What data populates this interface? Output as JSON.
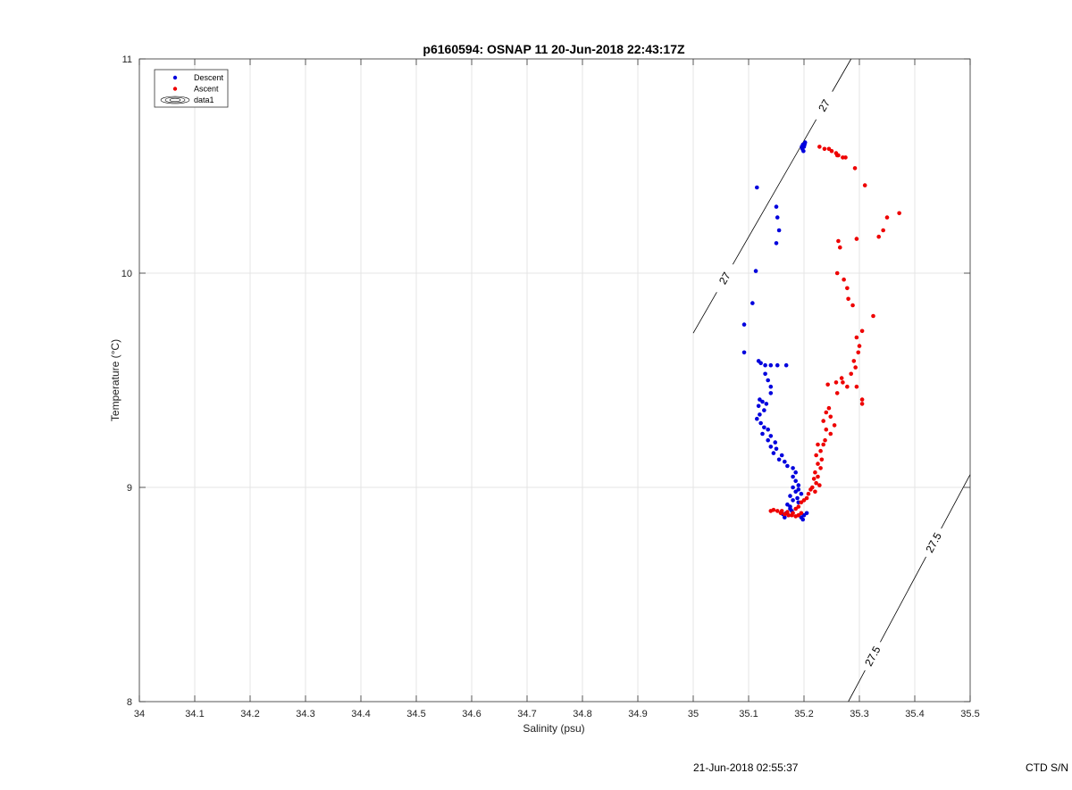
{
  "chart_data": {
    "type": "scatter",
    "title": "p6160594: OSNAP 11 20-Jun-2018 22:43:17Z",
    "xlabel": "Salinity (psu)",
    "ylabel": "Temperature (°C)",
    "xlim": [
      34,
      35.5
    ],
    "ylim": [
      8,
      11
    ],
    "xticks": [
      "34",
      "34.1",
      "34.2",
      "34.3",
      "34.4",
      "34.5",
      "34.6",
      "34.7",
      "34.8",
      "34.9",
      "35",
      "35.1",
      "35.2",
      "35.3",
      "35.4",
      "35.5"
    ],
    "yticks": [
      "8",
      "9",
      "10",
      "11"
    ],
    "grid": true,
    "legend_position": "top-left",
    "legend": [
      {
        "name": "Descent",
        "color": "#0000dd",
        "marker": "dot"
      },
      {
        "name": "Ascent",
        "color": "#ee0000",
        "marker": "dot"
      },
      {
        "name": "data1",
        "color": "#000000",
        "marker": "contour"
      }
    ],
    "series": [
      {
        "name": "Descent",
        "color": "#0000dd",
        "points": [
          [
            35.198,
            10.6
          ],
          [
            35.2,
            10.59
          ],
          [
            35.197,
            10.58
          ],
          [
            35.202,
            10.61
          ],
          [
            35.199,
            10.57
          ],
          [
            35.196,
            10.59
          ],
          [
            35.201,
            10.6
          ],
          [
            35.115,
            10.4
          ],
          [
            35.15,
            10.31
          ],
          [
            35.152,
            10.26
          ],
          [
            35.155,
            10.2
          ],
          [
            35.15,
            10.14
          ],
          [
            35.113,
            10.01
          ],
          [
            35.107,
            9.86
          ],
          [
            35.092,
            9.76
          ],
          [
            35.092,
            9.63
          ],
          [
            35.118,
            9.59
          ],
          [
            35.122,
            9.58
          ],
          [
            35.13,
            9.57
          ],
          [
            35.14,
            9.57
          ],
          [
            35.152,
            9.57
          ],
          [
            35.168,
            9.57
          ],
          [
            35.13,
            9.53
          ],
          [
            35.135,
            9.5
          ],
          [
            35.14,
            9.47
          ],
          [
            35.14,
            9.44
          ],
          [
            35.12,
            9.41
          ],
          [
            35.125,
            9.4
          ],
          [
            35.132,
            9.39
          ],
          [
            35.118,
            9.38
          ],
          [
            35.128,
            9.36
          ],
          [
            35.12,
            9.34
          ],
          [
            35.115,
            9.32
          ],
          [
            35.122,
            9.3
          ],
          [
            35.128,
            9.28
          ],
          [
            35.135,
            9.27
          ],
          [
            35.125,
            9.25
          ],
          [
            35.14,
            9.24
          ],
          [
            35.135,
            9.22
          ],
          [
            35.148,
            9.21
          ],
          [
            35.14,
            9.19
          ],
          [
            35.15,
            9.18
          ],
          [
            35.145,
            9.16
          ],
          [
            35.16,
            9.15
          ],
          [
            35.155,
            9.13
          ],
          [
            35.165,
            9.12
          ],
          [
            35.17,
            9.1
          ],
          [
            35.18,
            9.09
          ],
          [
            35.185,
            9.07
          ],
          [
            35.18,
            9.05
          ],
          [
            35.185,
            9.03
          ],
          [
            35.19,
            9.01
          ],
          [
            35.18,
            9.0
          ],
          [
            35.185,
            8.98
          ],
          [
            35.175,
            8.96
          ],
          [
            35.18,
            8.94
          ],
          [
            35.17,
            8.92
          ],
          [
            35.175,
            8.9
          ],
          [
            35.168,
            8.88
          ],
          [
            35.172,
            8.87
          ],
          [
            35.195,
            8.86
          ],
          [
            35.2,
            8.87
          ],
          [
            35.205,
            8.88
          ],
          [
            35.198,
            8.85
          ],
          [
            35.165,
            8.86
          ],
          [
            35.162,
            8.875
          ],
          [
            35.178,
            8.89
          ],
          [
            35.19,
            8.99
          ],
          [
            35.195,
            8.97
          ],
          [
            35.188,
            8.95
          ],
          [
            35.19,
            8.93
          ],
          [
            35.175,
            8.91
          ]
        ]
      },
      {
        "name": "Ascent",
        "color": "#ee0000",
        "points": [
          [
            35.228,
            10.59
          ],
          [
            35.237,
            10.58
          ],
          [
            35.245,
            10.58
          ],
          [
            35.25,
            10.57
          ],
          [
            35.258,
            10.56
          ],
          [
            35.262,
            10.55
          ],
          [
            35.27,
            10.54
          ],
          [
            35.275,
            10.54
          ],
          [
            35.26,
            10.55
          ],
          [
            35.292,
            10.49
          ],
          [
            35.31,
            10.41
          ],
          [
            35.372,
            10.28
          ],
          [
            35.35,
            10.26
          ],
          [
            35.343,
            10.2
          ],
          [
            35.335,
            10.17
          ],
          [
            35.262,
            10.15
          ],
          [
            35.265,
            10.12
          ],
          [
            35.295,
            10.16
          ],
          [
            35.26,
            10.0
          ],
          [
            35.272,
            9.97
          ],
          [
            35.278,
            9.93
          ],
          [
            35.28,
            9.88
          ],
          [
            35.288,
            9.85
          ],
          [
            35.325,
            9.8
          ],
          [
            35.305,
            9.73
          ],
          [
            35.295,
            9.7
          ],
          [
            35.3,
            9.66
          ],
          [
            35.298,
            9.63
          ],
          [
            35.29,
            9.59
          ],
          [
            35.293,
            9.56
          ],
          [
            35.285,
            9.53
          ],
          [
            35.268,
            9.51
          ],
          [
            35.258,
            9.49
          ],
          [
            35.27,
            9.49
          ],
          [
            35.278,
            9.47
          ],
          [
            35.243,
            9.48
          ],
          [
            35.26,
            9.44
          ],
          [
            35.295,
            9.47
          ],
          [
            35.305,
            9.41
          ],
          [
            35.305,
            9.39
          ],
          [
            35.245,
            9.37
          ],
          [
            35.24,
            9.35
          ],
          [
            35.248,
            9.33
          ],
          [
            35.235,
            9.31
          ],
          [
            35.255,
            9.29
          ],
          [
            35.24,
            9.27
          ],
          [
            35.248,
            9.25
          ],
          [
            35.238,
            9.22
          ],
          [
            35.235,
            9.2
          ],
          [
            35.225,
            9.2
          ],
          [
            35.23,
            9.17
          ],
          [
            35.222,
            9.15
          ],
          [
            35.232,
            9.13
          ],
          [
            35.225,
            9.11
          ],
          [
            35.23,
            9.09
          ],
          [
            35.22,
            9.07
          ],
          [
            35.225,
            9.05
          ],
          [
            35.218,
            9.04
          ],
          [
            35.222,
            9.02
          ],
          [
            35.228,
            9.01
          ],
          [
            35.215,
            9.0
          ],
          [
            35.212,
            8.99
          ],
          [
            35.22,
            8.98
          ],
          [
            35.208,
            8.97
          ],
          [
            35.205,
            8.95
          ],
          [
            35.2,
            8.94
          ],
          [
            35.195,
            8.93
          ],
          [
            35.19,
            8.91
          ],
          [
            35.185,
            8.9
          ],
          [
            35.14,
            8.89
          ],
          [
            35.145,
            8.895
          ],
          [
            35.152,
            8.89
          ],
          [
            35.158,
            8.88
          ],
          [
            35.165,
            8.875
          ],
          [
            35.172,
            8.87
          ],
          [
            35.178,
            8.87
          ],
          [
            35.185,
            8.865
          ],
          [
            35.19,
            8.87
          ],
          [
            35.195,
            8.88
          ],
          [
            35.18,
            8.88
          ],
          [
            35.17,
            8.885
          ],
          [
            35.16,
            8.89
          ]
        ]
      }
    ],
    "contours": [
      {
        "level": "27",
        "labels": [
          "27",
          "27"
        ],
        "line": [
          [
            35.0,
            9.72
          ],
          [
            35.285,
            11.0
          ]
        ]
      },
      {
        "level": "27.5",
        "labels": [
          "27.5",
          "27.5"
        ],
        "line": [
          [
            35.28,
            8.0
          ],
          [
            35.5,
            9.06
          ]
        ]
      }
    ]
  },
  "footer": {
    "timestamp": "21-Jun-2018 02:55:37",
    "ctd": "CTD S/N"
  }
}
